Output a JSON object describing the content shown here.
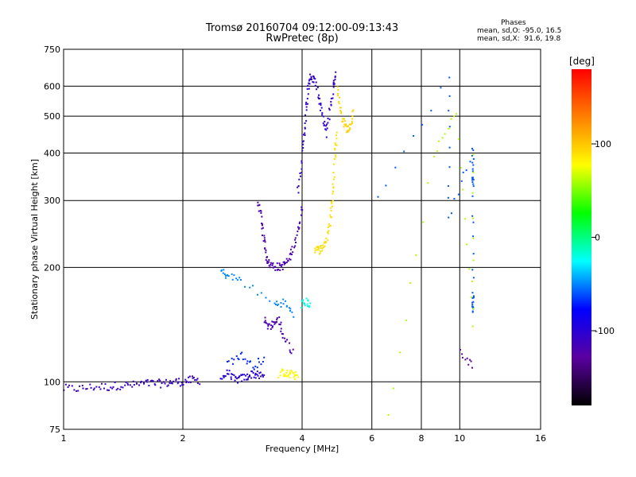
{
  "chart_data": {
    "type": "scatter",
    "title": "Tromsø 20160704 09:12:00-09:13:43",
    "subtitle": "RwPretec (8p)",
    "xlabel": "Frequency [MHz]",
    "ylabel": "Stationary phase Virtual Height [km]",
    "x_scale": "log",
    "y_scale": "log",
    "xlim": [
      1,
      16
    ],
    "ylim": [
      75,
      750
    ],
    "x_ticks": [
      1,
      2,
      4,
      6,
      8,
      10,
      16
    ],
    "y_ticks": [
      75,
      100,
      200,
      300,
      400,
      500,
      600,
      750
    ],
    "grid": true,
    "stats": {
      "heading": "Phases",
      "o_mode": "mean, sd,O: -95.0, 16.5",
      "x_mode": "mean, sd,X:  91.6, 19.8"
    },
    "colorbar": {
      "label": "[deg]",
      "ticks": [
        100,
        0,
        -100
      ],
      "range": [
        -180,
        180
      ],
      "colors": [
        "#000000",
        "#5a00a0",
        "#0000ff",
        "#00ffff",
        "#00ff00",
        "#ffff00",
        "#ff8000",
        "#ff0000"
      ]
    },
    "traces": [
      {
        "name": "",
        "phase": -110,
        "points": [
          [
            1.0,
            96
          ],
          [
            1.1,
            96
          ],
          [
            1.2,
            97
          ],
          [
            1.3,
            97
          ],
          [
            1.4,
            98
          ],
          [
            1.5,
            98
          ],
          [
            1.6,
            99
          ],
          [
            1.7,
            99
          ],
          [
            1.8,
            99
          ],
          [
            1.9,
            100
          ],
          [
            2.0,
            100
          ],
          [
            2.1,
            101
          ],
          [
            2.2,
            101
          ]
        ]
      },
      {
        "name": "",
        "phase": -100,
        "points": [
          [
            2.5,
            102
          ],
          [
            2.6,
            106
          ],
          [
            2.7,
            101
          ],
          [
            2.8,
            102
          ],
          [
            2.9,
            103
          ],
          [
            3.0,
            105
          ],
          [
            3.1,
            104
          ],
          [
            3.2,
            103
          ]
        ]
      },
      {
        "name": "",
        "phase": -120,
        "points": [
          [
            3.1,
            300
          ],
          [
            3.15,
            270
          ],
          [
            3.2,
            240
          ],
          [
            3.25,
            215
          ],
          [
            3.3,
            205
          ],
          [
            3.4,
            202
          ],
          [
            3.5,
            200
          ],
          [
            3.6,
            203
          ],
          [
            3.7,
            210
          ],
          [
            3.8,
            225
          ],
          [
            3.9,
            250
          ],
          [
            4.0,
            290
          ]
        ]
      },
      {
        "name": "",
        "phase": -105,
        "points": [
          [
            3.9,
            320
          ],
          [
            4.0,
            380
          ],
          [
            4.05,
            450
          ],
          [
            4.1,
            520
          ],
          [
            4.15,
            600
          ],
          [
            4.2,
            640
          ],
          [
            4.3,
            620
          ],
          [
            4.4,
            560
          ],
          [
            4.5,
            500
          ],
          [
            4.6,
            450
          ],
          [
            4.7,
            520
          ],
          [
            4.8,
            600
          ],
          [
            4.85,
            650
          ]
        ]
      },
      {
        "name": "",
        "phase": 90,
        "points": [
          [
            4.3,
            225
          ],
          [
            4.4,
            222
          ],
          [
            4.5,
            225
          ],
          [
            4.6,
            235
          ],
          [
            4.7,
            255
          ],
          [
            4.75,
            290
          ],
          [
            4.8,
            330
          ],
          [
            4.85,
            400
          ],
          [
            4.9,
            450
          ]
        ]
      },
      {
        "name": "",
        "phase": 95,
        "points": [
          [
            4.9,
            600
          ],
          [
            5.0,
            520
          ],
          [
            5.1,
            480
          ],
          [
            5.2,
            460
          ],
          [
            5.3,
            470
          ],
          [
            5.4,
            510
          ]
        ]
      },
      {
        "name": "",
        "phase": 80,
        "points": [
          [
            3.5,
            105
          ],
          [
            3.6,
            106
          ],
          [
            3.7,
            104
          ],
          [
            3.8,
            105
          ],
          [
            3.9,
            103
          ]
        ]
      },
      {
        "name": "",
        "phase": -50,
        "points": [
          [
            2.5,
            195
          ],
          [
            2.6,
            190
          ],
          [
            2.8,
            185
          ],
          [
            3.4,
            160
          ],
          [
            3.6,
            162
          ],
          [
            3.8,
            150
          ]
        ]
      },
      {
        "name": "",
        "phase": -20,
        "points": [
          [
            4.0,
            160
          ],
          [
            4.1,
            162
          ],
          [
            4.2,
            160
          ]
        ]
      },
      {
        "name": "",
        "phase": -120,
        "points": [
          [
            3.2,
            145
          ],
          [
            3.3,
            140
          ],
          [
            3.4,
            143
          ],
          [
            3.5,
            145
          ],
          [
            3.6,
            130
          ],
          [
            3.8,
            120
          ]
        ]
      },
      {
        "name": "",
        "phase": -70,
        "points": [
          [
            2.6,
            112
          ],
          [
            2.8,
            118
          ],
          [
            3.0,
            110
          ],
          [
            3.2,
            115
          ]
        ]
      },
      {
        "name": "",
        "phase": -60,
        "points": [
          [
            6.2,
            300
          ],
          [
            9.4,
            640
          ],
          [
            9.4,
            270
          ],
          [
            10.8,
            410
          ],
          [
            10.8,
            350
          ],
          [
            10.8,
            330
          ],
          [
            10.8,
            170
          ],
          [
            10.8,
            160
          ],
          [
            10.8,
            155
          ]
        ]
      },
      {
        "name": "",
        "phase": 60,
        "points": [
          [
            6.6,
            80
          ],
          [
            8.6,
            400
          ],
          [
            9.8,
            520
          ],
          [
            10.8,
            140
          ],
          [
            10.8,
            400
          ]
        ]
      },
      {
        "name": "",
        "phase": -130,
        "points": [
          [
            10.0,
            120
          ],
          [
            10.8,
            110
          ]
        ]
      }
    ]
  }
}
